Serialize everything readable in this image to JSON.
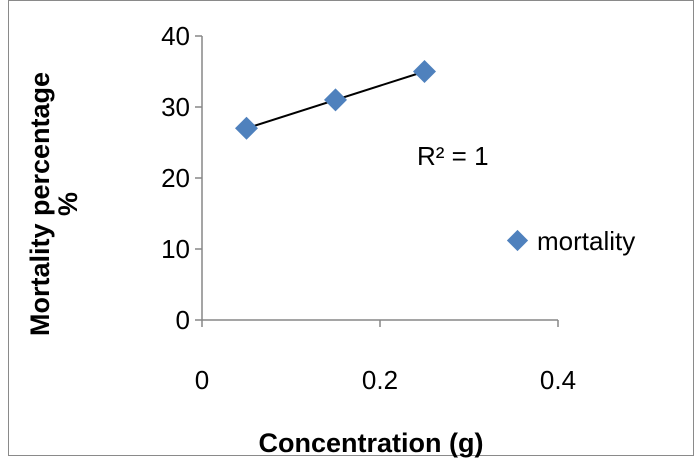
{
  "chart_data": {
    "type": "scatter",
    "title": "",
    "xlabel": "Concentration (g)",
    "ylabel_line1": "Mortality percentage",
    "ylabel_line2": "%",
    "xlim": [
      0,
      0.4
    ],
    "ylim": [
      0,
      40
    ],
    "xticks": [
      0,
      0.2,
      0.4
    ],
    "xtick_labels": [
      "0",
      "0.2",
      "0.4"
    ],
    "yticks": [
      0,
      10,
      20,
      30,
      40
    ],
    "ytick_labels": [
      "0",
      "10",
      "20",
      "30",
      "40"
    ],
    "grid": false,
    "legend": "right",
    "series": [
      {
        "name": "mortality",
        "color": "#4F81BD",
        "marker": "diamond",
        "x": [
          0.05,
          0.15,
          0.25
        ],
        "y": [
          27,
          31,
          35
        ]
      }
    ],
    "trendline": {
      "type": "linear",
      "color": "#000000",
      "x": [
        0.05,
        0.25
      ],
      "y": [
        27,
        35
      ]
    },
    "annotation": "R² = 1"
  }
}
